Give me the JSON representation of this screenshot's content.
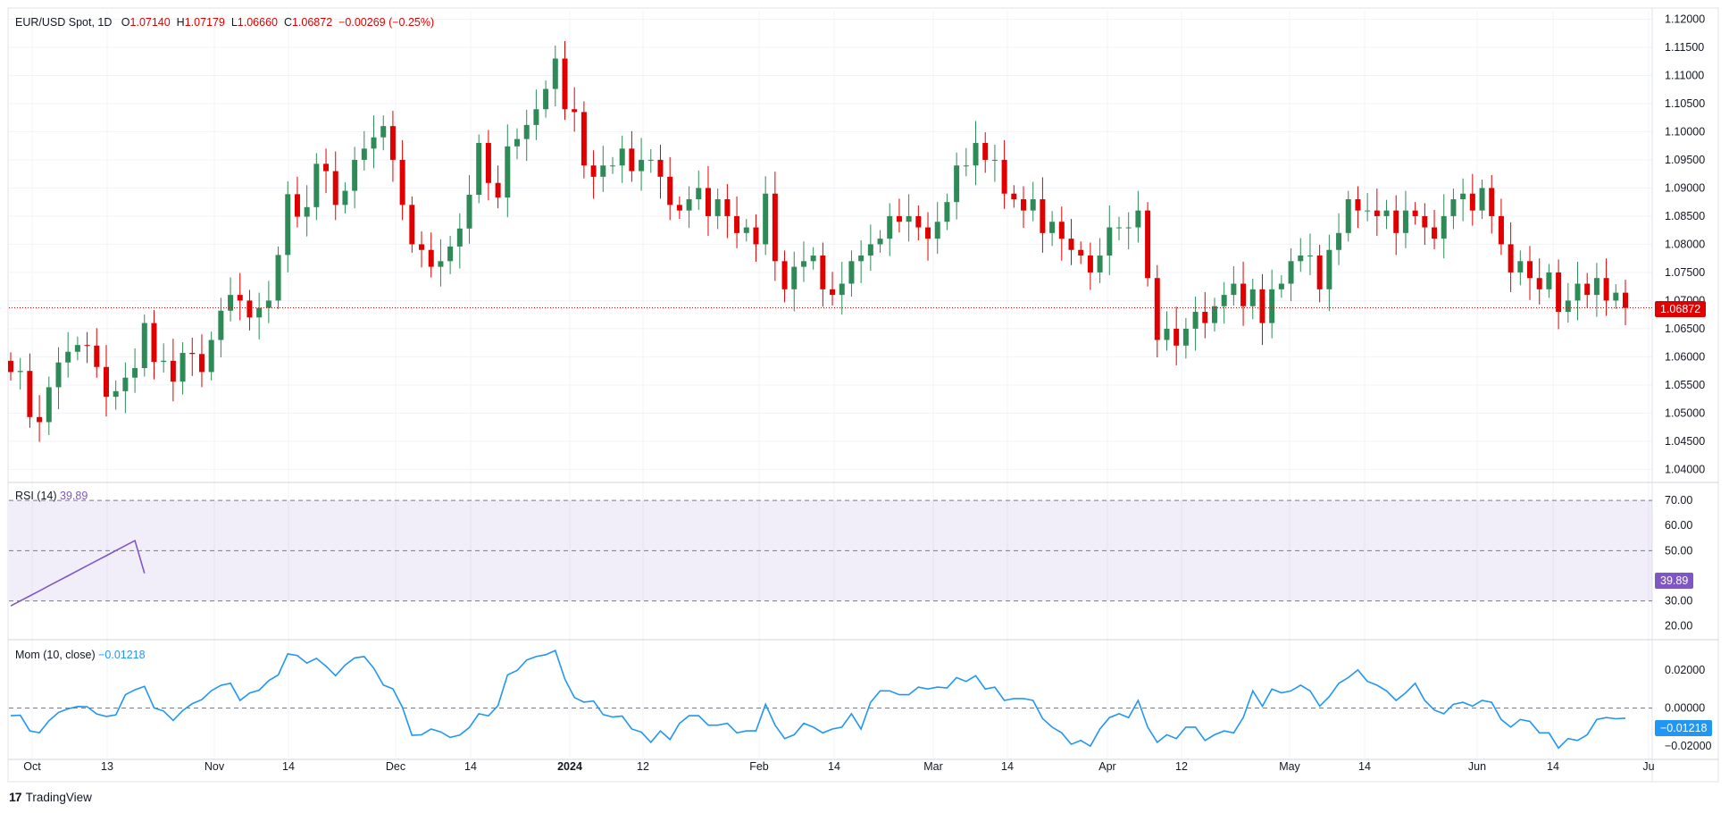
{
  "header": {
    "symbol": "EUR/USD Spot, 1D",
    "o_label": "O",
    "o_value": "1.07140",
    "h_label": "H",
    "h_value": "1.07179",
    "l_label": "L",
    "l_value": "1.06660",
    "c_label": "C",
    "c_value": "1.06872",
    "change": "−0.00269 (−0.25%)"
  },
  "rsi_legend": {
    "name": "RSI (14)",
    "value": "39.89"
  },
  "mom_legend": {
    "name": "Mom (10, close)",
    "value": "−0.01218"
  },
  "price_tag": "1.06872",
  "rsi_tag": "39.89",
  "mom_tag": "−0.01218",
  "footer": {
    "brand": "TradingView"
  },
  "colors": {
    "up": "#26a69a",
    "up_body": "#2e8b57",
    "down": "#e00000",
    "rsi": "#7e57c2",
    "mom": "#2196f3",
    "grid": "#f0f3fa"
  },
  "chart_data": {
    "type": "candlestick",
    "title": "EUR/USD Spot, 1D",
    "price_ylim": [
      1.04,
      1.12
    ],
    "price_ticks": [
      "1.12000",
      "1.11500",
      "1.11000",
      "1.10500",
      "1.10000",
      "1.09500",
      "1.09000",
      "1.08500",
      "1.08000",
      "1.07500",
      "1.07000",
      "1.06500",
      "1.06000",
      "1.05500",
      "1.05000",
      "1.04500",
      "1.04000"
    ],
    "x_labels": [
      "Oct",
      "13",
      "Nov",
      "14",
      "Dec",
      "14",
      "2024",
      "12",
      "Feb",
      "14",
      "Mar",
      "14",
      "Apr",
      "12",
      "May",
      "14",
      "Jun",
      "14",
      "Ju"
    ],
    "last_close": 1.06872,
    "close_series": [
      1.0573,
      1.0575,
      1.0493,
      1.0484,
      1.0546,
      1.059,
      1.0609,
      1.0621,
      1.062,
      1.0582,
      1.0529,
      1.0539,
      1.0563,
      1.058,
      1.066,
      1.0591,
      1.0593,
      1.0556,
      1.0607,
      1.0605,
      1.0573,
      1.063,
      1.0682,
      1.071,
      1.07,
      1.067,
      1.0687,
      1.07,
      1.0781,
      1.0889,
      1.0849,
      1.0866,
      1.0943,
      1.093,
      1.087,
      1.0895,
      1.095,
      1.097,
      1.099,
      1.101,
      1.095,
      1.087,
      1.08,
      1.079,
      1.076,
      1.077,
      1.0796,
      1.0828,
      1.0888,
      1.098,
      1.0909,
      1.0883,
      1.0974,
      1.0987,
      1.1012,
      1.104,
      1.1076,
      1.113,
      1.104,
      1.1035,
      1.094,
      1.092,
      1.094,
      1.094,
      1.097,
      1.093,
      1.095,
      1.095,
      1.092,
      1.087,
      1.086,
      1.088,
      1.09,
      1.085,
      1.088,
      1.085,
      1.082,
      1.083,
      1.08,
      1.089,
      1.077,
      1.072,
      1.076,
      1.077,
      1.078,
      1.072,
      1.071,
      1.073,
      1.077,
      1.078,
      1.08,
      1.081,
      1.085,
      1.084,
      1.085,
      1.083,
      1.081,
      1.084,
      1.0875,
      1.094,
      1.094,
      1.098,
      1.095,
      1.095,
      1.089,
      1.088,
      1.086,
      1.088,
      1.082,
      1.084,
      1.081,
      1.079,
      1.078,
      1.075,
      1.078,
      1.083,
      1.083,
      1.083,
      1.086,
      1.074,
      1.063,
      1.065,
      1.062,
      1.065,
      1.068,
      1.066,
      1.069,
      1.071,
      1.073,
      1.069,
      1.072,
      1.066,
      1.072,
      1.073,
      1.077,
      1.078,
      1.078,
      1.072,
      1.079,
      1.082,
      1.088,
      1.086,
      1.086,
      1.085,
      1.086,
      1.082,
      1.086,
      1.085,
      1.083,
      1.081,
      1.085,
      1.088,
      1.089,
      1.086,
      1.09,
      1.085,
      1.08,
      1.075,
      1.077,
      1.074,
      1.072,
      1.075,
      1.068,
      1.07,
      1.073,
      1.071,
      1.074,
      1.07,
      1.0714,
      1.0687
    ]
  }
}
